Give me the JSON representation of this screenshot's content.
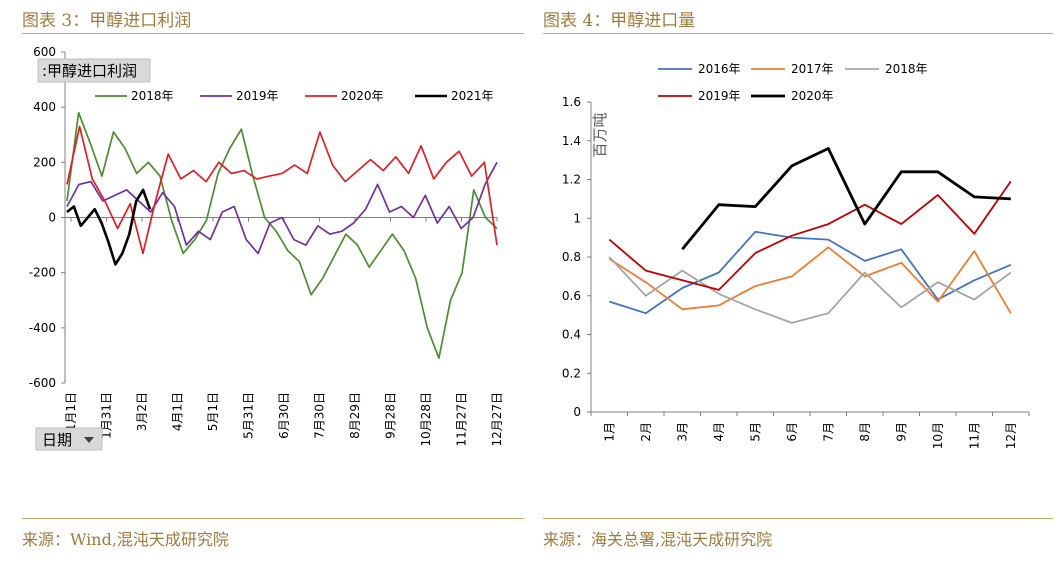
{
  "left": {
    "figure_title": "图表 3：甲醇进口利润",
    "source": "来源：Wind,混沌天成研究院",
    "chart_data": {
      "type": "line",
      "title_box": ":甲醇进口利润",
      "filter_label": "日期",
      "ylim": [
        -600,
        600
      ],
      "yticks": [
        600,
        400,
        200,
        0,
        -200,
        -400,
        -600
      ],
      "x_categories": [
        "1月1日",
        "1月31日",
        "3月2日",
        "4月1日",
        "5月1日",
        "5月31日",
        "6月30日",
        "7月30日",
        "8月29日",
        "9月28日",
        "10月28日",
        "11月27日",
        "12月27日"
      ],
      "series": [
        {
          "name": "2018年",
          "color": "#4e8d2f",
          "values": [
            60,
            380,
            270,
            150,
            310,
            250,
            160,
            200,
            150,
            -10,
            -130,
            -80,
            -10,
            160,
            250,
            320,
            150,
            0,
            -50,
            -120,
            -160,
            -280,
            -220,
            -140,
            -60,
            -100,
            -180,
            -120,
            -60,
            -120,
            -220,
            -400,
            -510,
            -300,
            -200,
            100,
            0,
            -40
          ]
        },
        {
          "name": "2019年",
          "color": "#7030a0",
          "values": [
            40,
            120,
            130,
            60,
            80,
            100,
            60,
            20,
            90,
            40,
            -100,
            -50,
            -80,
            20,
            40,
            -80,
            -130,
            -20,
            0,
            -80,
            -100,
            -30,
            -60,
            -50,
            -20,
            30,
            120,
            20,
            40,
            0,
            80,
            -20,
            40,
            -40,
            0,
            120,
            200
          ]
        },
        {
          "name": "2020年",
          "color": "#e01e26",
          "values": [
            120,
            330,
            140,
            60,
            -40,
            50,
            -130,
            60,
            230,
            140,
            170,
            130,
            200,
            160,
            170,
            140,
            150,
            160,
            190,
            160,
            310,
            190,
            130,
            170,
            210,
            170,
            220,
            160,
            260,
            140,
            200,
            240,
            150,
            200,
            -100
          ]
        },
        {
          "name": "2021年",
          "color": "#000000",
          "values": [
            20,
            40,
            -30,
            0,
            30,
            -20,
            -90,
            -170,
            -130,
            -60,
            60,
            100,
            30
          ]
        }
      ]
    }
  },
  "right": {
    "figure_title": "图表 4：甲醇进口量",
    "source": "来源：海关总署,混沌天成研究院",
    "chart_data": {
      "type": "line",
      "ylabel": "百万吨",
      "ylim": [
        0,
        1.6
      ],
      "yticks": [
        "1.6",
        "1.4",
        "1.2",
        "1",
        "0.8",
        "0.6",
        "0.4",
        "0.2",
        "0"
      ],
      "categories": [
        "1月",
        "2月",
        "3月",
        "4月",
        "5月",
        "6月",
        "7月",
        "8月",
        "9月",
        "10月",
        "11月",
        "12月"
      ],
      "series": [
        {
          "name": "2016年",
          "color": "#4472c4",
          "values": [
            0.57,
            0.51,
            0.64,
            0.72,
            0.93,
            0.9,
            0.89,
            0.78,
            0.84,
            0.58,
            0.68,
            0.76
          ]
        },
        {
          "name": "2017年",
          "color": "#ed7d31",
          "values": [
            0.79,
            0.67,
            0.53,
            0.55,
            0.65,
            0.7,
            0.85,
            0.7,
            0.77,
            0.57,
            0.83,
            0.51
          ]
        },
        {
          "name": "2018年",
          "color": "#a5a5a5",
          "values": [
            0.8,
            0.6,
            0.73,
            0.61,
            0.53,
            0.46,
            0.51,
            0.72,
            0.54,
            0.67,
            0.58,
            0.72
          ]
        },
        {
          "name": "2019年",
          "color": "#c00000",
          "values": [
            0.89,
            0.73,
            0.68,
            0.63,
            0.82,
            0.91,
            0.97,
            1.07,
            0.97,
            1.12,
            0.92,
            1.19
          ]
        },
        {
          "name": "2020年",
          "color": "#000000",
          "values": [
            null,
            null,
            0.84,
            1.07,
            1.06,
            1.27,
            1.36,
            0.97,
            1.24,
            1.24,
            1.11,
            1.1
          ]
        }
      ]
    }
  }
}
